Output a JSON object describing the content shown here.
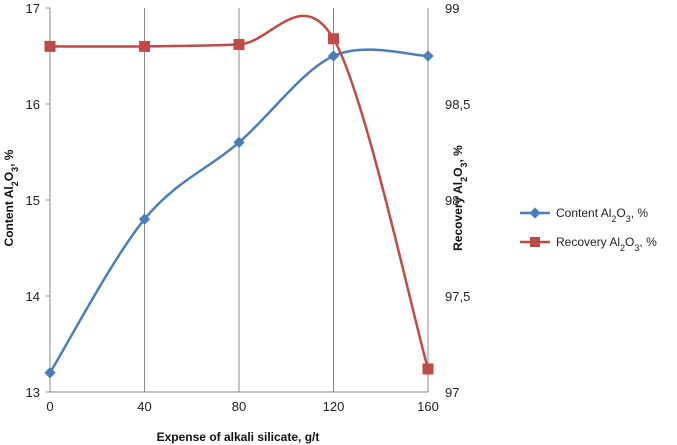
{
  "chart_data": {
    "type": "line",
    "x": [
      0,
      40,
      80,
      120,
      160
    ],
    "xlabel": "Expense of  alkali silicate, g/t",
    "ylabel_left": {
      "pre": "Content  Al",
      "sub1": "2",
      "mid": "O",
      "sub2": "3",
      "post": ", %"
    },
    "ylabel_right": {
      "pre": "Recovery  Al",
      "sub1": "2",
      "mid": "O",
      "sub2": "3",
      "post": ", %"
    },
    "ylim_left": [
      13,
      17
    ],
    "ylim_right": [
      97,
      99
    ],
    "yticks_left": [
      "13",
      "14",
      "15",
      "16",
      "17"
    ],
    "yticks_right": [
      "97",
      "97,5",
      "98",
      "98,5",
      "99"
    ],
    "xticks": [
      "0",
      "40",
      "80",
      "120",
      "160"
    ],
    "grid": "vertical",
    "legend_position": "right",
    "series": [
      {
        "name": "Content Al2O3, %",
        "legend": {
          "pre": "Content Al",
          "sub1": "2",
          "mid": "O",
          "sub2": "3",
          "post": ", %"
        },
        "axis": "left",
        "color": "#4a7ebb",
        "marker": "diamond",
        "values": [
          13.2,
          14.8,
          15.6,
          16.5,
          16.5
        ]
      },
      {
        "name": "Recovery Al2O3, %",
        "legend": {
          "pre": "Recovery Al",
          "sub1": "2",
          "mid": "O",
          "sub2": "3",
          "post": ", %"
        },
        "axis": "right",
        "color": "#be4b48",
        "marker": "square",
        "values": [
          98.8,
          98.8,
          98.81,
          98.84,
          97.12
        ]
      }
    ]
  }
}
